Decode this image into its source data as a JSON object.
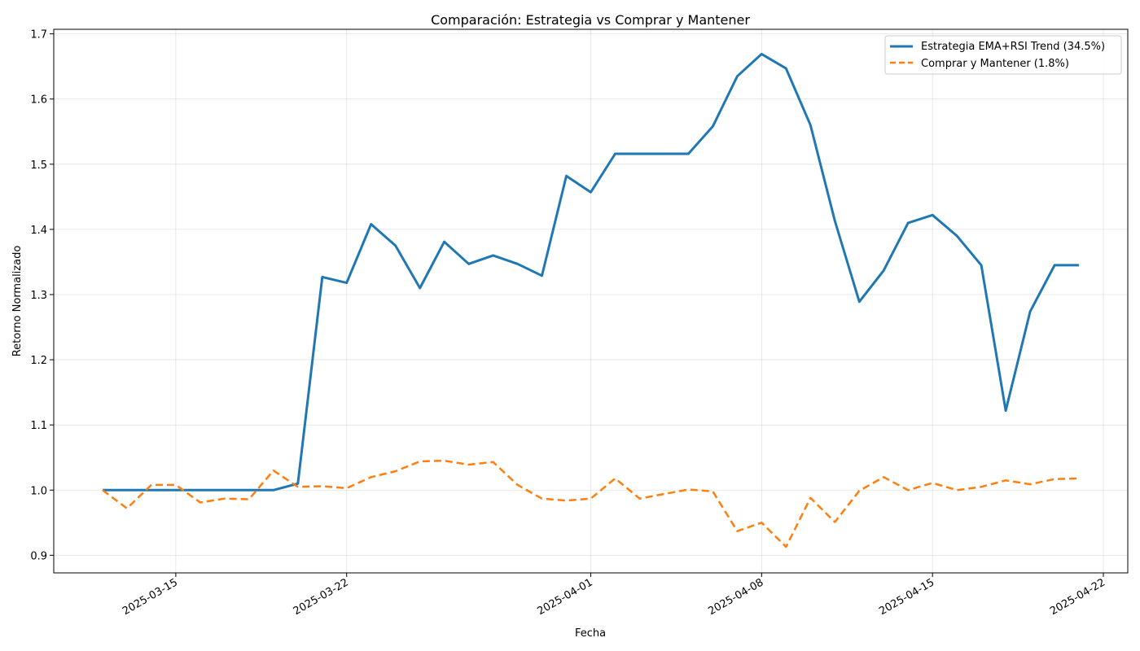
{
  "chart_data": {
    "type": "line",
    "title": "Comparación: Estrategia vs Comprar y Mantener",
    "xlabel": "Fecha",
    "ylabel": "Retorno Normalizado",
    "xlim": [
      "2025-03-10",
      "2025-04-23"
    ],
    "ylim": [
      0.873,
      1.707
    ],
    "x_ticks": [
      "2025-03-15",
      "2025-03-22",
      "2025-04-01",
      "2025-04-08",
      "2025-04-15",
      "2025-04-22"
    ],
    "y_ticks": [
      "0.9",
      "1.0",
      "1.1",
      "1.2",
      "1.3",
      "1.4",
      "1.5",
      "1.6",
      "1.7"
    ],
    "grid": true,
    "legend_position": "top-right",
    "x": [
      "2025-03-12",
      "2025-03-13",
      "2025-03-14",
      "2025-03-15",
      "2025-03-16",
      "2025-03-17",
      "2025-03-18",
      "2025-03-19",
      "2025-03-20",
      "2025-03-21",
      "2025-03-22",
      "2025-03-23",
      "2025-03-24",
      "2025-03-25",
      "2025-03-26",
      "2025-03-27",
      "2025-03-28",
      "2025-03-29",
      "2025-03-30",
      "2025-03-31",
      "2025-04-01",
      "2025-04-02",
      "2025-04-03",
      "2025-04-04",
      "2025-04-05",
      "2025-04-06",
      "2025-04-07",
      "2025-04-08",
      "2025-04-09",
      "2025-04-10",
      "2025-04-11",
      "2025-04-12",
      "2025-04-13",
      "2025-04-14",
      "2025-04-15",
      "2025-04-16",
      "2025-04-17",
      "2025-04-18",
      "2025-04-19",
      "2025-04-20",
      "2025-04-21"
    ],
    "series": [
      {
        "name": "Estrategia EMA+RSI Trend (34.5%)",
        "color": "#1f77b4",
        "style": "solid",
        "values": [
          1.0,
          1.0,
          1.0,
          1.0,
          1.0,
          1.0,
          1.0,
          1.0,
          1.01,
          1.327,
          1.318,
          1.408,
          1.375,
          1.31,
          1.381,
          1.347,
          1.36,
          1.347,
          1.329,
          1.482,
          1.457,
          1.516,
          1.516,
          1.516,
          1.516,
          1.558,
          1.635,
          1.669,
          1.647,
          1.56,
          1.413,
          1.289,
          1.337,
          1.41,
          1.422,
          1.39,
          1.345,
          1.122,
          1.274,
          1.345,
          1.345
        ]
      },
      {
        "name": "Comprar y Mantener (1.8%)",
        "color": "#ff7f0e",
        "style": "dashed",
        "values": [
          1.0,
          0.972,
          1.008,
          1.008,
          0.981,
          0.987,
          0.986,
          1.03,
          1.005,
          1.006,
          1.003,
          1.02,
          1.029,
          1.044,
          1.045,
          1.039,
          1.043,
          1.008,
          0.987,
          0.984,
          0.987,
          1.018,
          0.987,
          0.994,
          1.001,
          0.998,
          0.937,
          0.95,
          0.913,
          0.988,
          0.951,
          0.999,
          1.02,
          1.0,
          1.011,
          1.0,
          1.005,
          1.015,
          1.009,
          1.017,
          1.018
        ]
      }
    ]
  }
}
